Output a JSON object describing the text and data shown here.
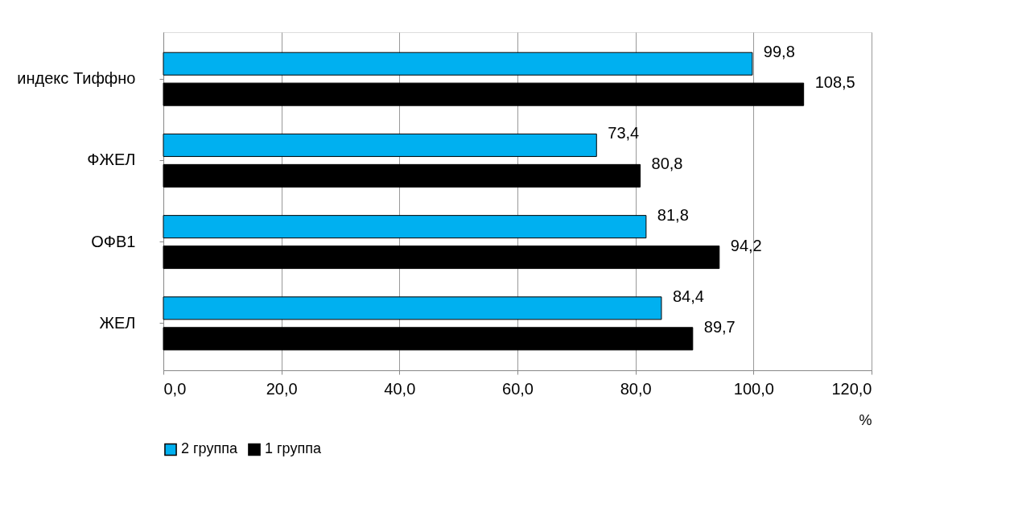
{
  "chart_data": {
    "type": "bar",
    "orientation": "horizontal",
    "categories": [
      "индекс Тиффно",
      "ФЖЕЛ",
      "ОФВ1",
      "ЖЕЛ"
    ],
    "series": [
      {
        "name": "2 группа",
        "color": "#00b0f0",
        "values": [
          99.8,
          73.4,
          81.8,
          84.4
        ],
        "value_labels": [
          "99,8",
          "73,4",
          "81,8",
          "84,4"
        ]
      },
      {
        "name": "1 группа",
        "color": "#000000",
        "values": [
          108.5,
          80.8,
          94.2,
          89.7
        ],
        "value_labels": [
          "108,5",
          "80,8",
          "94,2",
          "89,7"
        ]
      }
    ],
    "xlabel": "%",
    "xlim": [
      0,
      120
    ],
    "xticks": [
      {
        "value": 0,
        "label": "0,0"
      },
      {
        "value": 20,
        "label": "20,0"
      },
      {
        "value": 40,
        "label": "40,0"
      },
      {
        "value": 60,
        "label": "60,0"
      },
      {
        "value": 80,
        "label": "80,0"
      },
      {
        "value": 100,
        "label": "100,0"
      },
      {
        "value": 120,
        "label": "120,0"
      }
    ],
    "grid": "x",
    "legend": "bottom"
  }
}
